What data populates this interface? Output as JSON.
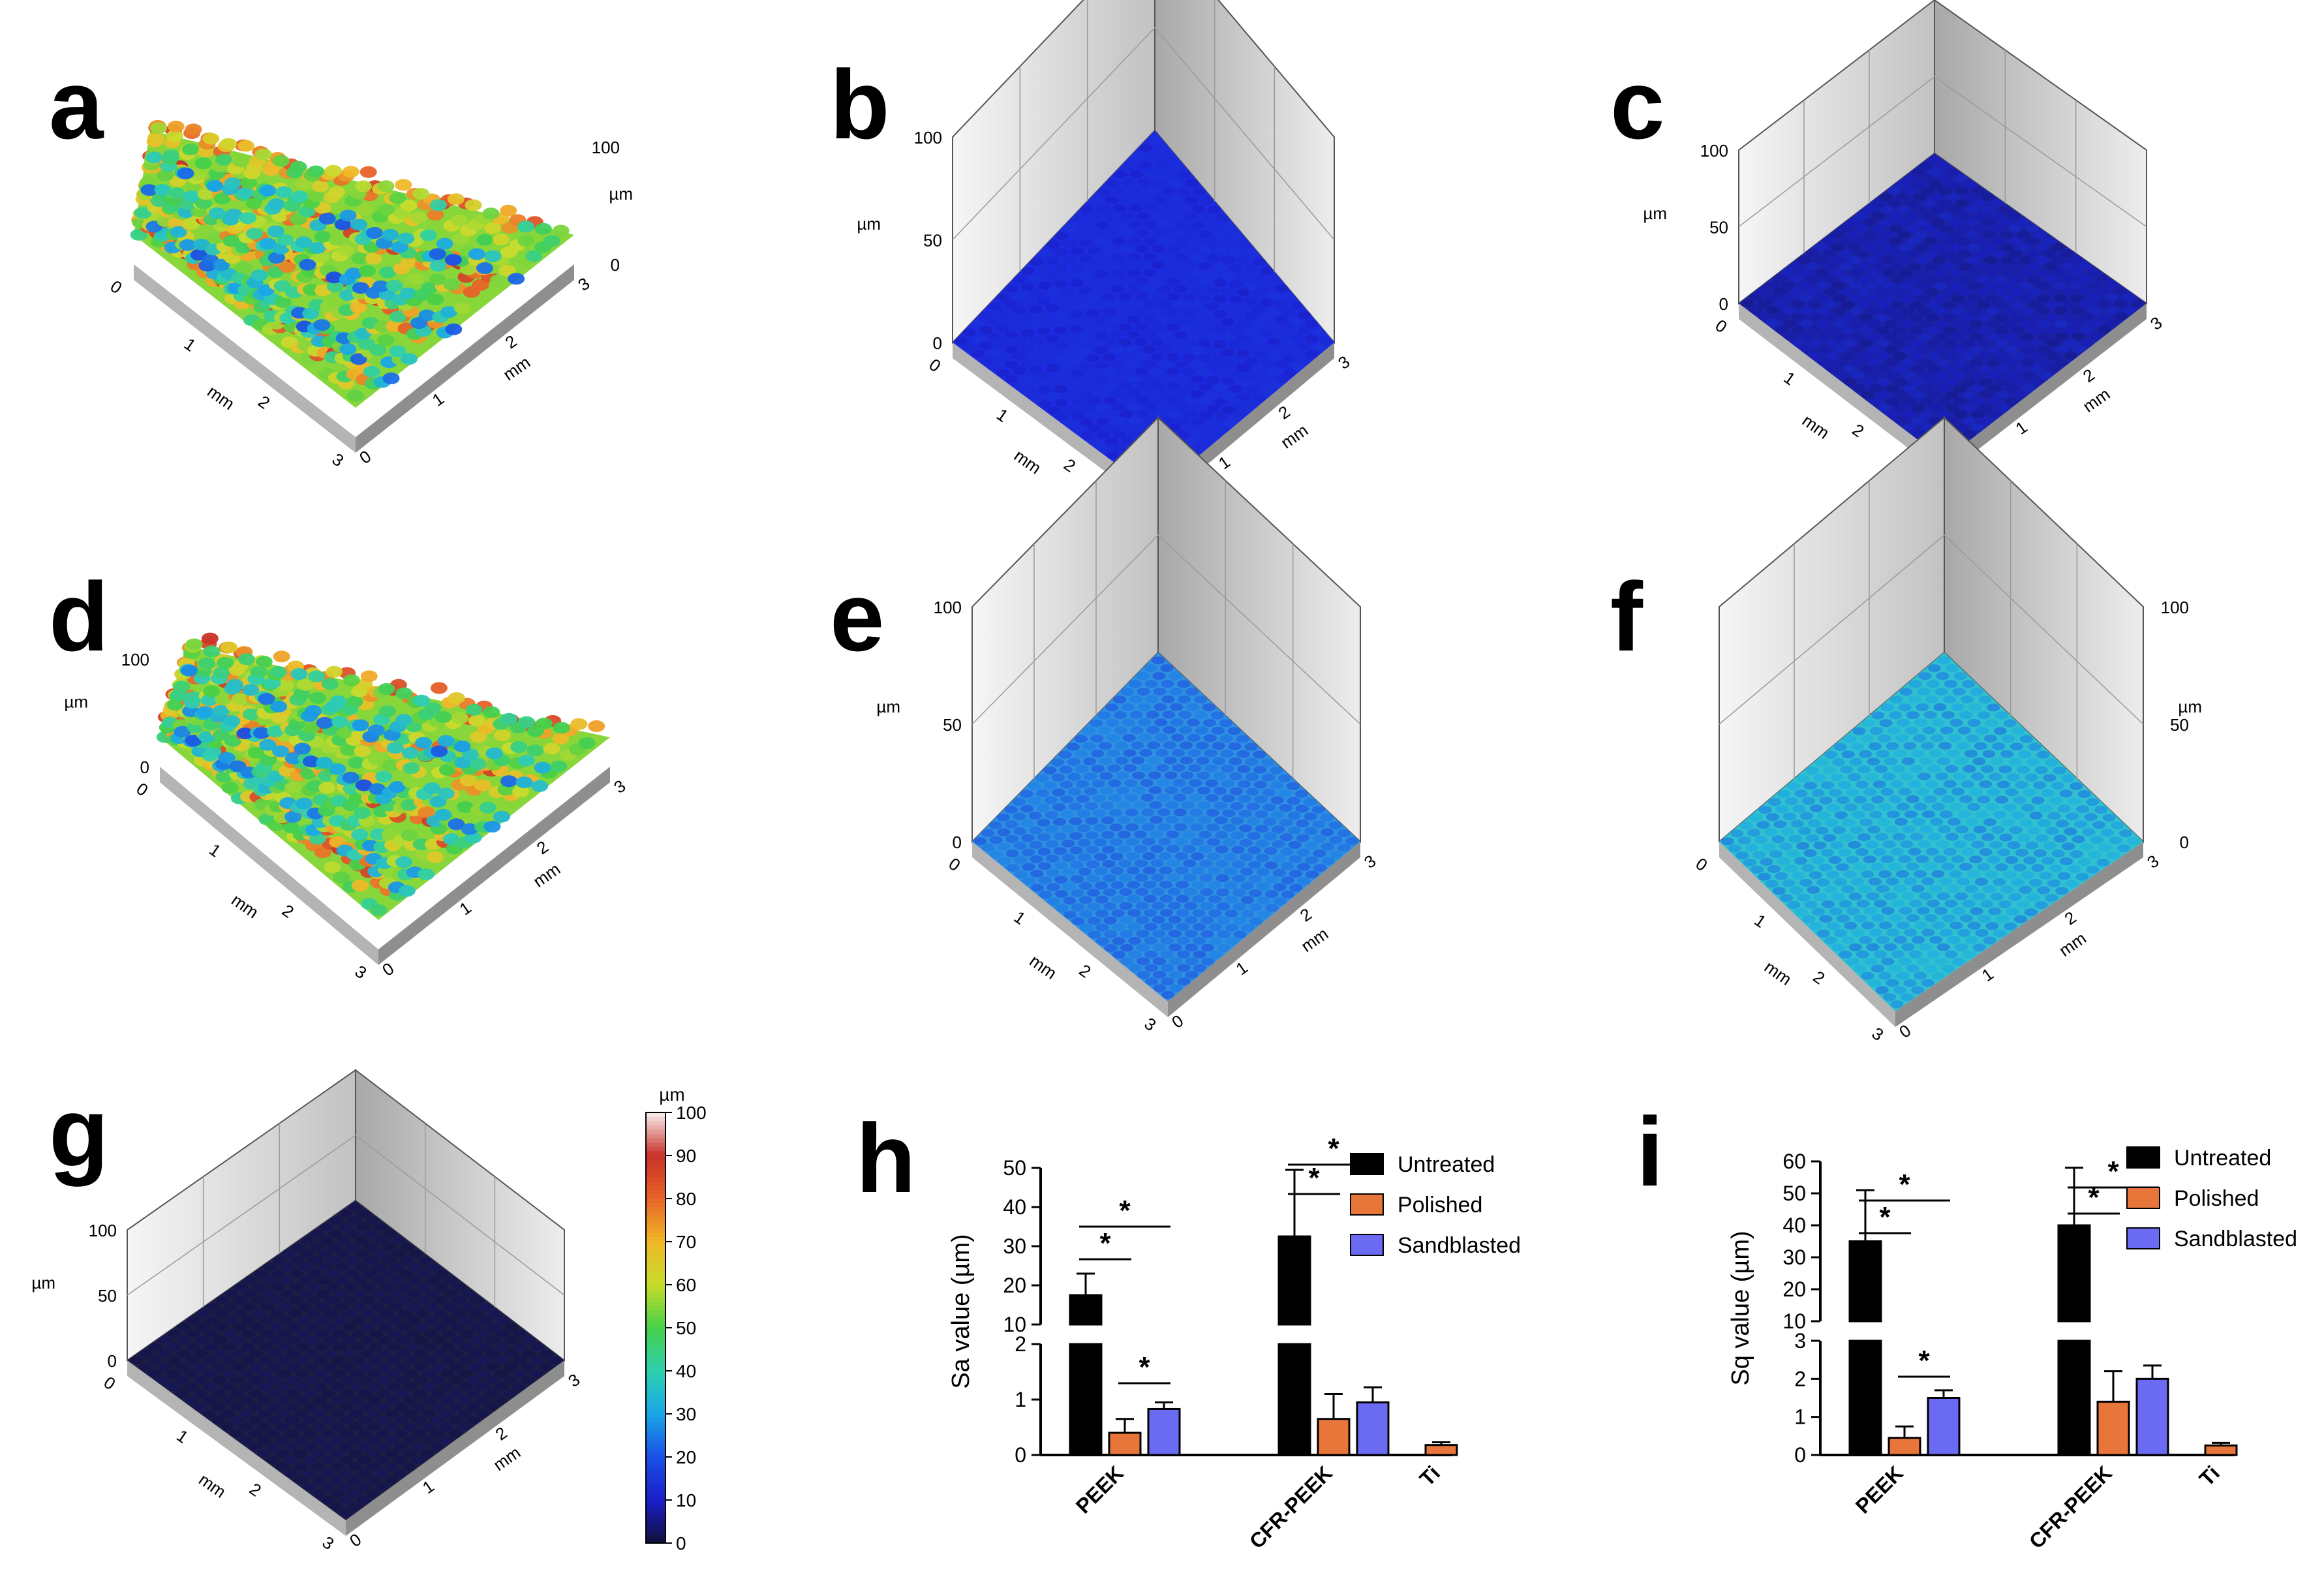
{
  "panels": [
    {
      "id": "a",
      "label": "a",
      "type": "surface",
      "surface": "rough-warm",
      "z_ticks": [
        "100",
        "0"
      ],
      "z_unit": "µm",
      "x_ticks": [
        "0",
        "1",
        "2",
        "3"
      ],
      "y_ticks": [
        "0",
        "1",
        "2",
        "3"
      ],
      "axis_unit": "mm",
      "zmax": 100
    },
    {
      "id": "b",
      "label": "b",
      "type": "surface",
      "surface": "flat-blue",
      "z_ticks": [
        "100",
        "50",
        "0"
      ],
      "z_unit": "µm",
      "x_ticks": [
        "0",
        "1",
        "2",
        "3"
      ],
      "y_ticks": [
        "0",
        "1",
        "2",
        "3"
      ],
      "axis_unit": "mm",
      "zmax": 100
    },
    {
      "id": "c",
      "label": "c",
      "type": "surface",
      "surface": "navy",
      "z_ticks": [
        "100",
        "50",
        "0"
      ],
      "z_unit": "µm",
      "x_ticks": [
        "0",
        "1",
        "2",
        "3"
      ],
      "y_ticks": [
        "0",
        "1",
        "2",
        "3"
      ],
      "axis_unit": "mm",
      "zmax": 100
    },
    {
      "id": "d",
      "label": "d",
      "type": "surface",
      "surface": "rough-warm",
      "z_ticks": [
        "100",
        "0"
      ],
      "z_unit": "µm",
      "x_ticks": [
        "0",
        "1",
        "2",
        "3"
      ],
      "y_ticks": [
        "0",
        "1",
        "2",
        "3"
      ],
      "axis_unit": "mm",
      "zmax": 100
    },
    {
      "id": "e",
      "label": "e",
      "type": "surface",
      "surface": "light-blue",
      "z_ticks": [
        "100",
        "50",
        "0"
      ],
      "z_unit": "µm",
      "x_ticks": [
        "0",
        "1",
        "2",
        "3"
      ],
      "y_ticks": [
        "0",
        "1",
        "2",
        "3"
      ],
      "axis_unit": "mm",
      "zmax": 100
    },
    {
      "id": "f",
      "label": "f",
      "type": "surface",
      "surface": "cyan",
      "z_ticks": [
        "100",
        "50",
        "0"
      ],
      "z_unit": "µm",
      "x_ticks": [
        "0",
        "1",
        "2",
        "3"
      ],
      "y_ticks": [
        "0",
        "1",
        "2",
        "3"
      ],
      "axis_unit": "mm",
      "zmax": 100
    },
    {
      "id": "g",
      "label": "g",
      "type": "surface",
      "surface": "dark-flat",
      "z_ticks": [
        "100",
        "50",
        "0"
      ],
      "z_unit": "µm",
      "x_ticks": [
        "0",
        "1",
        "2",
        "3"
      ],
      "y_ticks": [
        "0",
        "1",
        "2",
        "3"
      ],
      "axis_unit": "mm",
      "zmax": 100
    }
  ],
  "colorbar": {
    "unit": "µm",
    "ticks": [
      "100",
      "90",
      "80",
      "70",
      "60",
      "50",
      "40",
      "30",
      "20",
      "10",
      "0"
    ],
    "min": 0,
    "max": 100,
    "stops": [
      "#10103a",
      "#1a1ec8",
      "#1a4fe6",
      "#19a6e8",
      "#2fd0b0",
      "#45d048",
      "#c8dc2c",
      "#f0b828",
      "#e86428",
      "#c83028",
      "#f8f0f0"
    ]
  },
  "colors": {
    "untreated": "#000000",
    "polished": "#e8763a",
    "sandblasted": "#6a6af2"
  },
  "chart_data": [
    {
      "panel": "h",
      "type": "bar",
      "ylabel": "Sa value (µm)",
      "categories": [
        "PEEK",
        "CFR-PEEK",
        "Ti"
      ],
      "series": [
        {
          "name": "Untreated",
          "values": [
            17.5,
            32.5,
            null
          ],
          "errors": [
            5.5,
            17.0,
            null
          ]
        },
        {
          "name": "Polished",
          "values": [
            0.4,
            0.65,
            0.18
          ],
          "errors": [
            0.25,
            0.45,
            0.05
          ]
        },
        {
          "name": "Sandblasted",
          "values": [
            0.83,
            0.95,
            null
          ],
          "errors": [
            0.12,
            0.27,
            null
          ]
        }
      ],
      "y_axis_break": {
        "lower": [
          0,
          2
        ],
        "upper": [
          10,
          50
        ]
      },
      "y_ticks_lower": [
        "0",
        "1",
        "2"
      ],
      "y_ticks_upper": [
        "10",
        "20",
        "30",
        "40",
        "50"
      ],
      "significance": [
        "*",
        "*",
        "*",
        "*",
        "*"
      ],
      "legend": {
        "position": "top-right",
        "entries": [
          "Untreated",
          "Polished",
          "Sandblasted"
        ]
      }
    },
    {
      "panel": "i",
      "type": "bar",
      "ylabel": "Sq value (µm)",
      "categories": [
        "PEEK",
        "CFR-PEEK",
        "Ti"
      ],
      "series": [
        {
          "name": "Untreated",
          "values": [
            35,
            40,
            null
          ],
          "errors": [
            16,
            18,
            null
          ]
        },
        {
          "name": "Polished",
          "values": [
            0.45,
            1.4,
            0.25
          ],
          "errors": [
            0.3,
            0.8,
            0.07
          ]
        },
        {
          "name": "Sandblasted",
          "values": [
            1.5,
            2.0,
            null
          ],
          "errors": [
            0.2,
            0.35,
            null
          ]
        }
      ],
      "y_axis_break": {
        "lower": [
          0,
          3
        ],
        "upper": [
          10,
          60
        ]
      },
      "y_ticks_lower": [
        "0",
        "1",
        "2",
        "3"
      ],
      "y_ticks_upper": [
        "10",
        "20",
        "30",
        "40",
        "50",
        "60"
      ],
      "significance": [
        "*",
        "*",
        "*",
        "*",
        "*"
      ],
      "legend": {
        "position": "top-right",
        "entries": [
          "Untreated",
          "Polished",
          "Sandblasted"
        ]
      }
    }
  ]
}
